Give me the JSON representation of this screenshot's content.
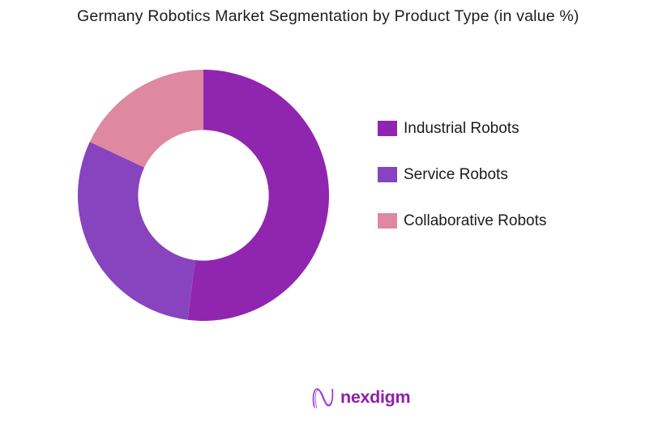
{
  "title": "Germany Robotics Market Segmentation by Product Type (in value %)",
  "chart_data": {
    "type": "pie",
    "subtype": "donut",
    "title": "Germany Robotics Market Segmentation by Product Type (in value %)",
    "categories": [
      "Industrial Robots",
      "Service Robots",
      "Collaborative Robots"
    ],
    "values": [
      52,
      30,
      18
    ],
    "unit": "value %",
    "colors": [
      "#9026b0",
      "#8843bf",
      "#de88a1"
    ],
    "start_angle_deg": 0,
    "direction": "clockwise",
    "donut_hole_ratio": 0.52,
    "legend_position": "right",
    "data_labels": false
  },
  "legend": {
    "items": [
      {
        "label": "Industrial Robots",
        "color": "#9026b0"
      },
      {
        "label": "Service Robots",
        "color": "#8843bf"
      },
      {
        "label": "Collaborative Robots",
        "color": "#de88a1"
      }
    ]
  },
  "footer": {
    "brand": "nexdigm"
  }
}
